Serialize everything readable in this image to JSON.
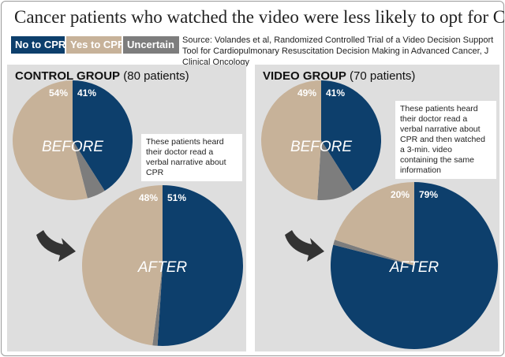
{
  "title": "Cancer patients who watched the video were less likely to opt for CPR",
  "legend": [
    {
      "label": "No to CPR",
      "color": "#0d3f6c"
    },
    {
      "label": "Yes to CPR",
      "color": "#c7b299"
    },
    {
      "label": "Uncertain",
      "color": "#7d7d7d"
    }
  ],
  "source": "Source: Volandes et al, Randomized Controlled Trial of a Video Decision Support Tool for Cardiopulmonary Resuscitation Decision Making in Advanced Cancer, J Clinical Oncology",
  "control": {
    "heading_bold": "CONTROL GROUP",
    "heading_rest": "(80 patients)",
    "note": "These patients heard their doctor read a verbal narrative about CPR"
  },
  "video": {
    "heading_bold": "VIDEO GROUP",
    "heading_rest": "(70 patients)",
    "note": "These patients heard their doctor read a verbal narrative about CPR and then watched a 3-min. video containing the same information"
  },
  "chart_data": [
    {
      "type": "pie",
      "group": "CONTROL GROUP",
      "label": "BEFORE",
      "slices": [
        {
          "name": "No to CPR",
          "value": 41,
          "label": "41%"
        },
        {
          "name": "Uncertain",
          "value": 5,
          "label": ""
        },
        {
          "name": "Yes to CPR",
          "value": 54,
          "label": "54%"
        }
      ]
    },
    {
      "type": "pie",
      "group": "CONTROL GROUP",
      "label": "AFTER",
      "slices": [
        {
          "name": "No to CPR",
          "value": 51,
          "label": "51%"
        },
        {
          "name": "Uncertain",
          "value": 1,
          "label": ""
        },
        {
          "name": "Yes to CPR",
          "value": 48,
          "label": "48%"
        }
      ]
    },
    {
      "type": "pie",
      "group": "VIDEO GROUP",
      "label": "BEFORE",
      "slices": [
        {
          "name": "No to CPR",
          "value": 41,
          "label": "41%"
        },
        {
          "name": "Uncertain",
          "value": 10,
          "label": ""
        },
        {
          "name": "Yes to CPR",
          "value": 49,
          "label": "49%"
        }
      ]
    },
    {
      "type": "pie",
      "group": "VIDEO GROUP",
      "label": "AFTER",
      "slices": [
        {
          "name": "No to CPR",
          "value": 79,
          "label": "79%"
        },
        {
          "name": "Uncertain",
          "value": 1,
          "label": ""
        },
        {
          "name": "Yes to CPR",
          "value": 20,
          "label": "20%"
        }
      ]
    }
  ]
}
